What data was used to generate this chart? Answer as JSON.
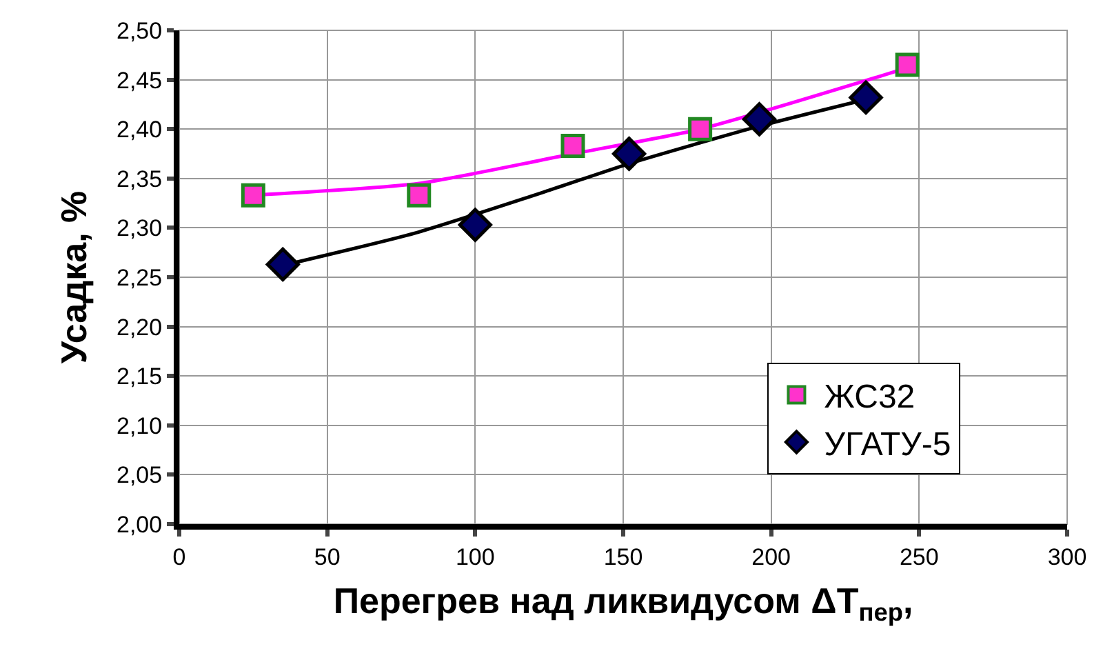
{
  "chart_data": {
    "type": "scatter",
    "xlabel": "Перегрев над ликвидусом ΔT$_{пер}$,",
    "ylabel": "Усадка, %",
    "xlim": [
      0,
      300
    ],
    "xticks": [
      0,
      50,
      100,
      150,
      200,
      250,
      300
    ],
    "ylim": [
      2.0,
      2.5
    ],
    "yticks": [
      {
        "value": 2.0,
        "label": "2,00"
      },
      {
        "value": 2.05,
        "label": "2,05"
      },
      {
        "value": 2.1,
        "label": "2,10"
      },
      {
        "value": 2.15,
        "label": "2,15"
      },
      {
        "value": 2.2,
        "label": "2,20"
      },
      {
        "value": 2.25,
        "label": "2,25"
      },
      {
        "value": 2.3,
        "label": "2,30"
      },
      {
        "value": 2.35,
        "label": "2,35"
      },
      {
        "value": 2.4,
        "label": "2,40"
      },
      {
        "value": 2.45,
        "label": "2,45"
      },
      {
        "value": 2.5,
        "label": "2,50"
      }
    ],
    "grid": true,
    "legend": "bottom right",
    "series": [
      {
        "type": "line",
        "color": "#ff00ff",
        "x": [
          25,
          81,
          133,
          176,
          246
        ],
        "values": [
          2.333,
          2.345,
          2.375,
          2.4,
          2.462
        ],
        "marker": "none"
      },
      {
        "type": "line",
        "color": "#000000",
        "x": [
          35,
          80,
          125,
          152,
          196,
          232
        ],
        "values": [
          2.262,
          2.295,
          2.338,
          2.365,
          2.403,
          2.43
        ],
        "marker": "none"
      },
      {
        "name": "ЖС32",
        "color": "#ff33cc",
        "x": [
          25,
          81,
          133,
          176,
          246
        ],
        "values": [
          2.333,
          2.333,
          2.383,
          2.4,
          2.465
        ],
        "marker": "square"
      },
      {
        "name": "УГАТУ-5",
        "color": "#000066",
        "x": [
          35,
          100,
          152,
          196,
          232
        ],
        "values": [
          2.263,
          2.303,
          2.375,
          2.41,
          2.432
        ],
        "marker": "diamond"
      }
    ]
  }
}
